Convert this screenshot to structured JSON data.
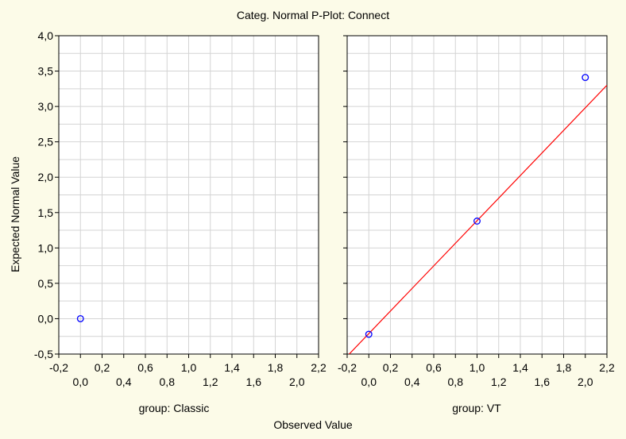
{
  "chart_data": {
    "type": "scatter",
    "title": "Categ. Normal P-Plot:  Connect",
    "xlabel": "Observed Value",
    "ylabel": "Expected Normal Value",
    "xlim": [
      -0.2,
      2.2
    ],
    "ylim": [
      -0.5,
      4.0
    ],
    "grid": true,
    "x_ticks_upper": [
      "-0,2",
      "0,2",
      "0,6",
      "1,0",
      "1,4",
      "1,8",
      "2,2"
    ],
    "x_ticks_lower": [
      "0,0",
      "0,4",
      "0,8",
      "1,2",
      "1,6",
      "2,0"
    ],
    "y_ticks": [
      "-0,5",
      "0,0",
      "0,5",
      "1,0",
      "1,5",
      "2,0",
      "2,5",
      "3,0",
      "3,5",
      "4,0"
    ],
    "point_color": "#0000ff",
    "line_color": "#ff0000",
    "panels": [
      {
        "label": "group: Classic",
        "points": [
          {
            "x": 0.0,
            "y": 0.0
          }
        ],
        "fit_line": null
      },
      {
        "label": "group: VT",
        "points": [
          {
            "x": 0.0,
            "y": -0.22
          },
          {
            "x": 1.0,
            "y": 1.38
          },
          {
            "x": 2.0,
            "y": 3.41
          }
        ],
        "fit_line": {
          "x1": -0.2,
          "y1": -0.53,
          "x2": 2.2,
          "y2": 3.3
        }
      }
    ]
  }
}
